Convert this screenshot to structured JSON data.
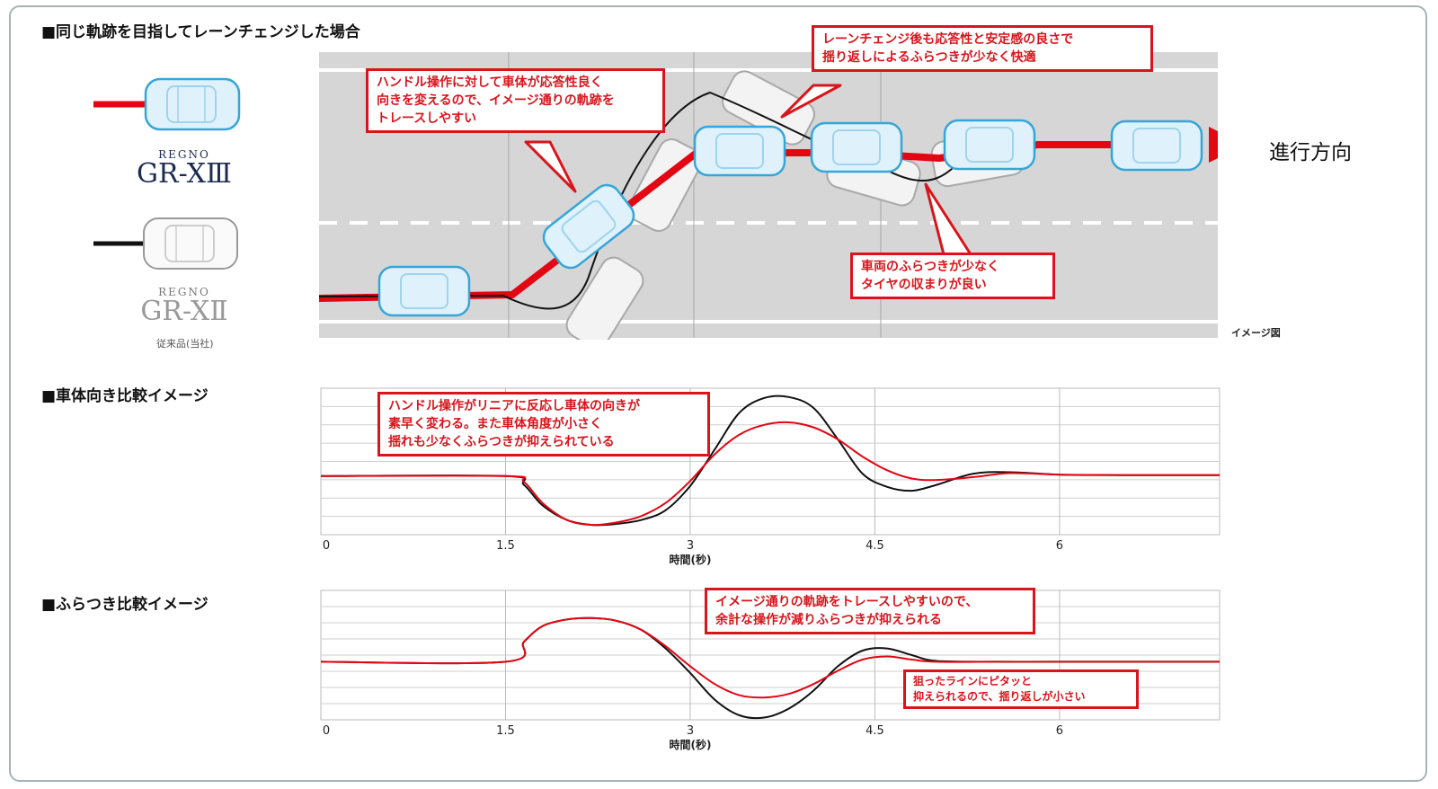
{
  "section1": {
    "title": "■同じ軌跡を目指してレーンチェンジした場合",
    "direction_label": "進行方向",
    "image_note": "イメージ図",
    "callout_a": [
      "ハンドル操作に対して車体が応答性良く",
      "向きを変えるので、イメージ通りの軌跡を",
      "トレースしやすい"
    ],
    "callout_b": [
      "レーンチェンジ後も応答性と安定感の良さで",
      "揺り返しによるふらつきが少なく快適"
    ],
    "callout_c": [
      "車両のふらつきが少なく",
      "タイヤの収まりが良い"
    ]
  },
  "legend": {
    "new_product": {
      "brand": "REGNO",
      "model": "GR-XⅢ",
      "color": "#e30613"
    },
    "old_product": {
      "brand": "REGNO",
      "model": "GR-XⅡ",
      "note": "従来品(当社)",
      "color": "#111111"
    }
  },
  "chart1": {
    "title": "■車体向き比較イメージ",
    "callout": [
      "ハンドル操作がリニアに反応し車体の向きが",
      "素早く変わる。また車体角度が小さく",
      "揺れも少なくふらつきが抑えられている"
    ]
  },
  "chart2": {
    "title": "■ふらつき比較イメージ",
    "callout": [
      "イメージ通りの軌跡をトレースしやすいので、",
      "余計な操作が減りふらつきが抑えられる"
    ],
    "callout2": [
      "狙ったラインにピタッと",
      "抑えられるので、揺り返しが小さい"
    ]
  },
  "colors": {
    "new": "#e30613",
    "old": "#111111",
    "road": "#d7d7d7",
    "callout": "#d9141b"
  },
  "chart_data": [
    {
      "type": "line",
      "title": "■車体向き比較イメージ",
      "xlabel": "時間(秒)",
      "ylabel": "",
      "x_ticks": [
        "0",
        "1.5",
        "3",
        "4.5",
        "6"
      ],
      "xlim": [
        0,
        7.3
      ],
      "ylim": [
        -1.2,
        1.8
      ],
      "grid": true,
      "series": [
        {
          "name": "REGNO GR-XⅢ",
          "color": "#e30613",
          "x": [
            0,
            1.5,
            1.65,
            1.8,
            2.0,
            2.2,
            2.4,
            2.6,
            2.8,
            3.0,
            3.2,
            3.4,
            3.6,
            3.8,
            4.0,
            4.2,
            4.4,
            4.6,
            4.8,
            5.0,
            5.3,
            5.6,
            6.0,
            6.5,
            7.3
          ],
          "y": [
            0,
            0,
            -0.12,
            -0.55,
            -0.9,
            -1.0,
            -0.95,
            -0.82,
            -0.55,
            -0.1,
            0.45,
            0.85,
            1.05,
            1.1,
            1.0,
            0.75,
            0.4,
            0.12,
            -0.05,
            -0.08,
            -0.02,
            0.06,
            0.03,
            0.02,
            0.02
          ]
        },
        {
          "name": "REGNO GR-XⅡ",
          "color": "#111111",
          "x": [
            0,
            1.5,
            1.65,
            1.8,
            2.0,
            2.2,
            2.4,
            2.6,
            2.8,
            3.0,
            3.2,
            3.4,
            3.6,
            3.8,
            4.0,
            4.2,
            4.4,
            4.6,
            4.8,
            5.0,
            5.3,
            5.6,
            6.0,
            6.5,
            7.3
          ],
          "y": [
            0,
            0,
            -0.18,
            -0.6,
            -0.9,
            -1.0,
            -0.98,
            -0.9,
            -0.7,
            -0.2,
            0.55,
            1.3,
            1.6,
            1.62,
            1.4,
            0.75,
            0.05,
            -0.22,
            -0.3,
            -0.18,
            0.05,
            0.08,
            0.03,
            0.02,
            0.02
          ]
        }
      ]
    },
    {
      "type": "line",
      "title": "■ふらつき比較イメージ",
      "xlabel": "時間(秒)",
      "ylabel": "",
      "x_ticks": [
        "0",
        "1.5",
        "3",
        "4.5",
        "6"
      ],
      "xlim": [
        0,
        7.3
      ],
      "ylim": [
        -1.3,
        1.6
      ],
      "grid": true,
      "series": [
        {
          "name": "REGNO GR-XⅢ",
          "color": "#e30613",
          "x": [
            0,
            1.5,
            1.65,
            1.8,
            2.0,
            2.2,
            2.4,
            2.6,
            2.8,
            3.0,
            3.2,
            3.4,
            3.6,
            3.8,
            4.0,
            4.2,
            4.4,
            4.6,
            4.8,
            5.0,
            5.5,
            6.0,
            7.3
          ],
          "y": [
            0,
            0,
            0.45,
            0.8,
            0.95,
            0.98,
            0.92,
            0.72,
            0.35,
            -0.1,
            -0.5,
            -0.75,
            -0.8,
            -0.72,
            -0.5,
            -0.2,
            0.05,
            0.12,
            0.05,
            0.0,
            0.0,
            0.0,
            0.0
          ]
        },
        {
          "name": "REGNO GR-XⅡ",
          "color": "#111111",
          "x": [
            0,
            1.5,
            1.65,
            1.8,
            2.0,
            2.2,
            2.4,
            2.6,
            2.8,
            3.0,
            3.2,
            3.4,
            3.6,
            3.8,
            4.0,
            4.2,
            4.4,
            4.6,
            4.8,
            5.0,
            5.5,
            6.0,
            7.3
          ],
          "y": [
            0,
            0,
            0.45,
            0.8,
            0.95,
            0.98,
            0.92,
            0.72,
            0.3,
            -0.25,
            -0.85,
            -1.2,
            -1.25,
            -1.05,
            -0.65,
            -0.1,
            0.25,
            0.3,
            0.15,
            0.02,
            0.0,
            0.0,
            0.0
          ]
        }
      ]
    }
  ]
}
